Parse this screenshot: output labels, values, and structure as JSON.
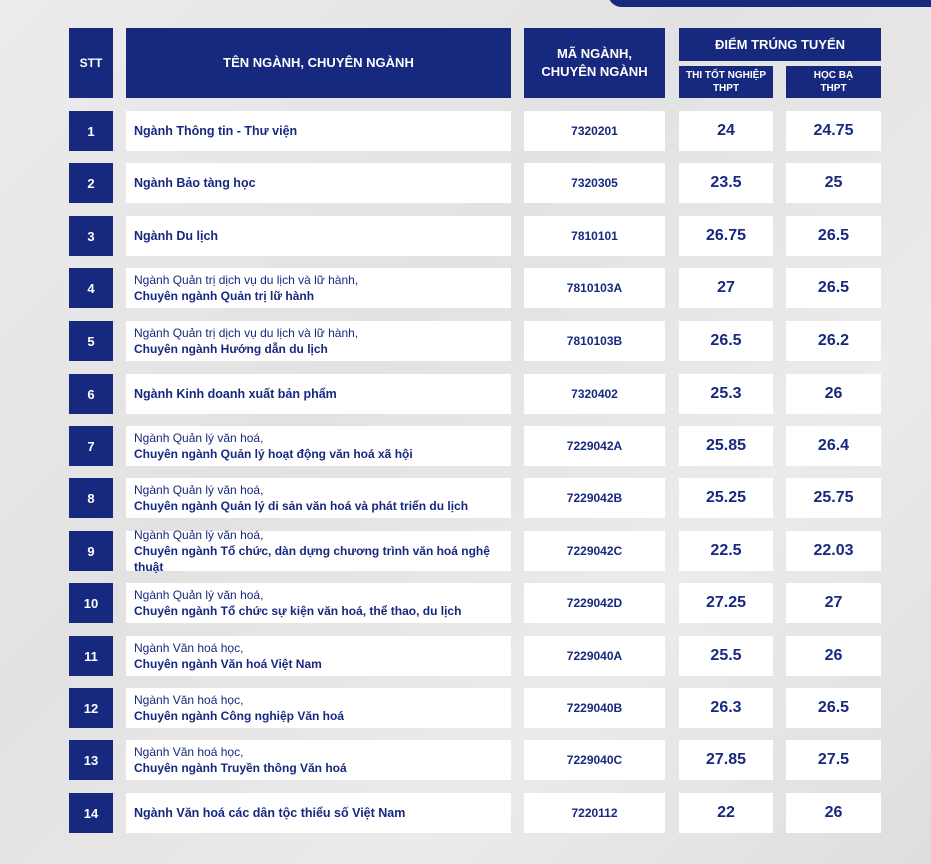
{
  "header": {
    "stt": "STT",
    "name": "TÊN NGÀNH, CHUYÊN NGÀNH",
    "code_line1": "MÃ NGÀNH,",
    "code_line2": "CHUYÊN NGÀNH",
    "score": "ĐIỂM TRÚNG TUYỂN",
    "thpt_line1": "THI TỐT NGHIỆP",
    "thpt_line2": "THPT",
    "hocba_line1": "HỌC BẠ",
    "hocba_line2": "THPT"
  },
  "rows": [
    {
      "stt": "1",
      "line1": "",
      "line2": "Ngành Thông tin - Thư viện",
      "code": "7320201",
      "thpt": "24",
      "hocba": "24.75"
    },
    {
      "stt": "2",
      "line1": "",
      "line2": "Ngành Bảo tàng học",
      "code": "7320305",
      "thpt": "23.5",
      "hocba": "25"
    },
    {
      "stt": "3",
      "line1": "",
      "line2": "Ngành Du lịch",
      "code": "7810101",
      "thpt": "26.75",
      "hocba": "26.5"
    },
    {
      "stt": "4",
      "line1": "Ngành Quản trị dịch vụ du lịch và lữ hành,",
      "line2": "Chuyên ngành Quản trị lữ hành",
      "code": "7810103A",
      "thpt": "27",
      "hocba": "26.5"
    },
    {
      "stt": "5",
      "line1": "Ngành Quản trị dịch vụ du lịch và lữ hành,",
      "line2": "Chuyên ngành Hướng dẫn du lịch",
      "code": "7810103B",
      "thpt": "26.5",
      "hocba": "26.2"
    },
    {
      "stt": "6",
      "line1": "",
      "line2": "Ngành Kinh doanh xuất bản phẩm",
      "code": "7320402",
      "thpt": "25.3",
      "hocba": "26"
    },
    {
      "stt": "7",
      "line1": "Ngành Quản lý văn hoá,",
      "line2": "Chuyên ngành Quản lý hoạt động văn hoá xã hội",
      "code": "7229042A",
      "thpt": "25.85",
      "hocba": "26.4"
    },
    {
      "stt": "8",
      "line1": "Ngành Quản lý văn hoá,",
      "line2": "Chuyên ngành Quản lý di sản văn hoá và phát triển du lịch",
      "code": "7229042B",
      "thpt": "25.25",
      "hocba": "25.75"
    },
    {
      "stt": "9",
      "line1": "Ngành Quản lý văn hoá,",
      "line2": "Chuyên ngành Tổ chức, dàn dựng chương trình văn hoá nghệ thuật",
      "code": "7229042C",
      "thpt": "22.5",
      "hocba": "22.03"
    },
    {
      "stt": "10",
      "line1": "Ngành Quản lý văn hoá,",
      "line2": "Chuyên ngành Tổ chức sự kiện văn hoá, thể thao, du lịch",
      "code": "7229042D",
      "thpt": "27.25",
      "hocba": "27"
    },
    {
      "stt": "11",
      "line1": "Ngành Văn hoá học,",
      "line2": "Chuyên ngành Văn hoá Việt Nam",
      "code": "7229040A",
      "thpt": "25.5",
      "hocba": "26"
    },
    {
      "stt": "12",
      "line1": "Ngành Văn hoá học,",
      "line2": "Chuyên ngành Công nghiệp Văn hoá",
      "code": "7229040B",
      "thpt": "26.3",
      "hocba": "26.5"
    },
    {
      "stt": "13",
      "line1": "Ngành Văn hoá học,",
      "line2": "Chuyên ngành Truyền thông Văn hoá",
      "code": "7229040C",
      "thpt": "27.85",
      "hocba": "27.5"
    },
    {
      "stt": "14",
      "line1": "",
      "line2": "Ngành Văn hoá các dân tộc thiểu số Việt Nam",
      "code": "7220112",
      "thpt": "22",
      "hocba": "26"
    }
  ]
}
